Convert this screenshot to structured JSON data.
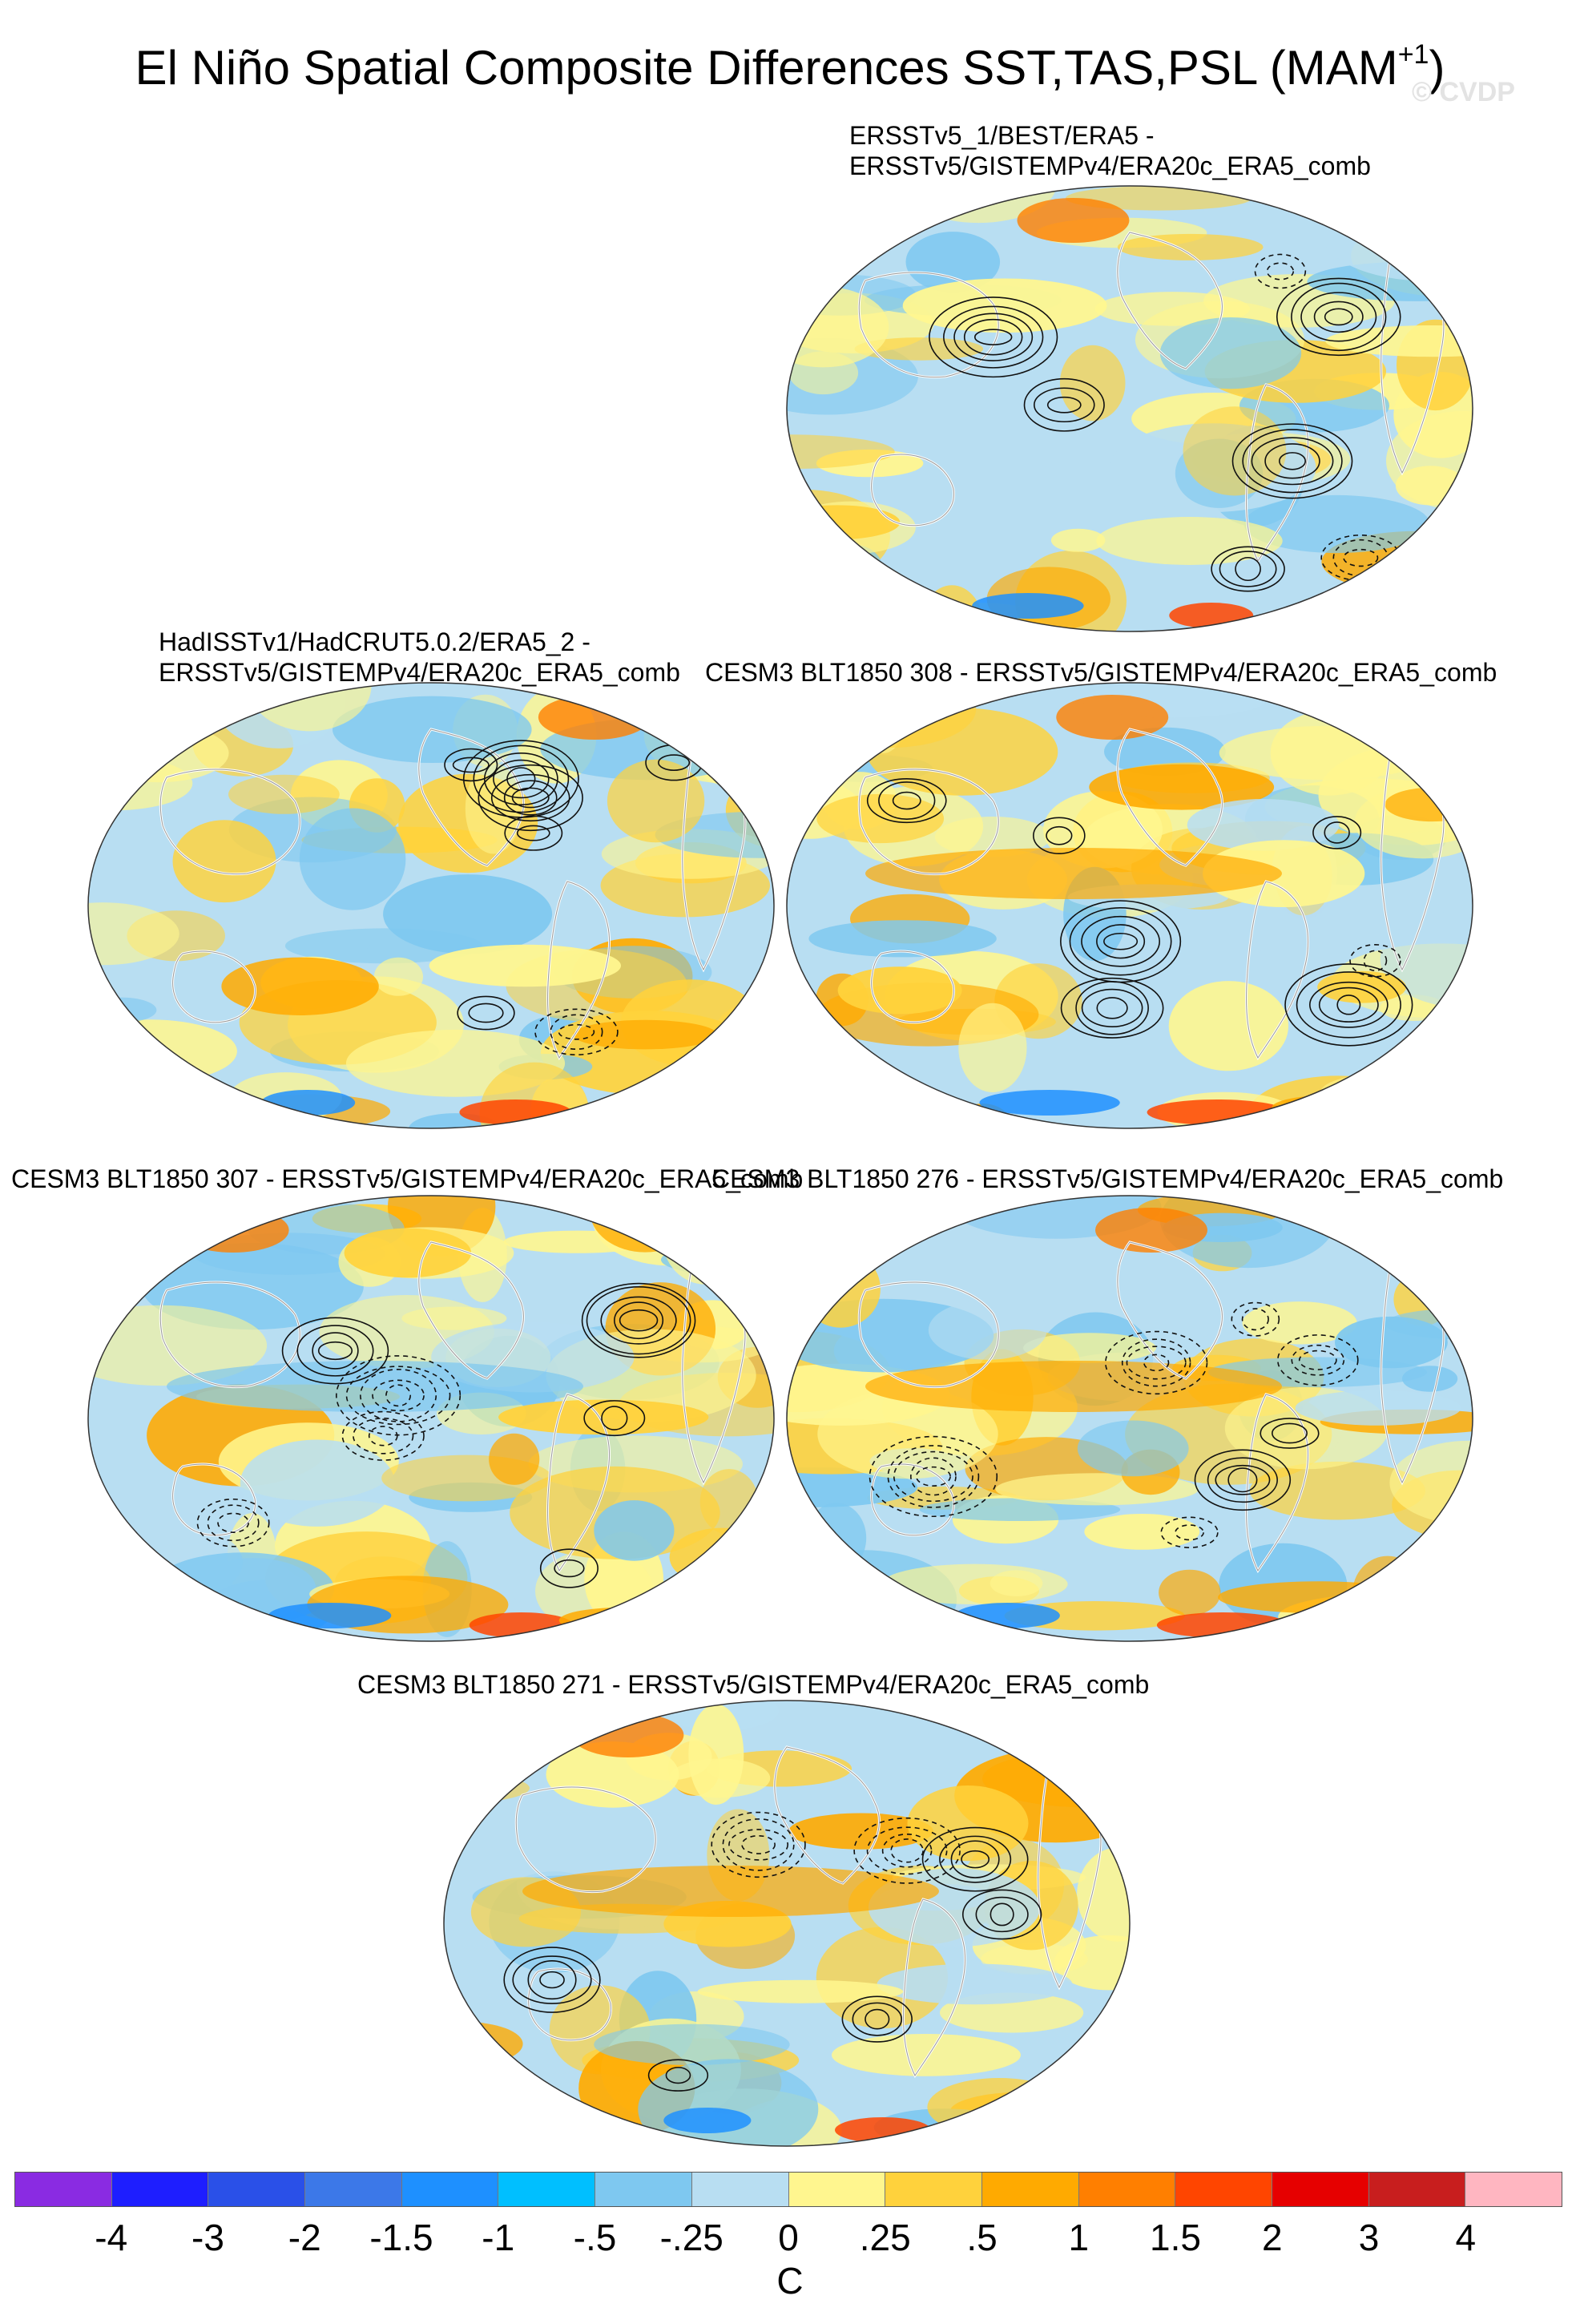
{
  "figure": {
    "title": "El Niño Spatial Composite Differences SST,TAS,PSL (MAM",
    "title_superscript": "+1",
    "title_close": ")",
    "watermark": "© CVDP"
  },
  "panels": [
    {
      "label_line1": "ERSSTv5_1/BEST/ERA5 -",
      "label_line2": "ERSSTv5/GISTEMPv4/ERA20c_ERA5_comb"
    },
    {
      "label_line1": "HadISSTv1/HadCRUT5.0.2/ERA5_2 -",
      "label_line2": "ERSSTv5/GISTEMPv4/ERA20c_ERA5_comb"
    },
    {
      "label_line1": "CESM3 BLT1850 308 - ERSSTv5/GISTEMPv4/ERA20c_ERA5_comb",
      "label_line2": ""
    },
    {
      "label_line1": "CESM3 BLT1850 307 - ERSSTv5/GISTEMPv4/ERA20c_ERA5_comb",
      "label_line2": ""
    },
    {
      "label_line1": "CESM3 BLT1850 276 - ERSSTv5/GISTEMPv4/ERA20c_ERA5_comb",
      "label_line2": ""
    },
    {
      "label_line1": "CESM3 BLT1850 271 - ERSSTv5/GISTEMPv4/ERA20c_ERA5_comb",
      "label_line2": ""
    }
  ],
  "colorbar": {
    "colors": [
      "#8a2be2",
      "#1e1eff",
      "#2a50e8",
      "#3c78e8",
      "#1e90ff",
      "#00bfff",
      "#7ec8f0",
      "#b8def2",
      "#fff68f",
      "#ffd23c",
      "#ffaa00",
      "#ff7f00",
      "#ff4500",
      "#e60000",
      "#c81e1e",
      "#ffb6c1"
    ],
    "tick_labels": [
      "-4",
      "-3",
      "-2",
      "-1.5",
      "-1",
      "-.5",
      "-.25",
      "0",
      ".25",
      ".5",
      "1",
      "1.5",
      "2",
      "3",
      "4"
    ],
    "units": "C"
  }
}
